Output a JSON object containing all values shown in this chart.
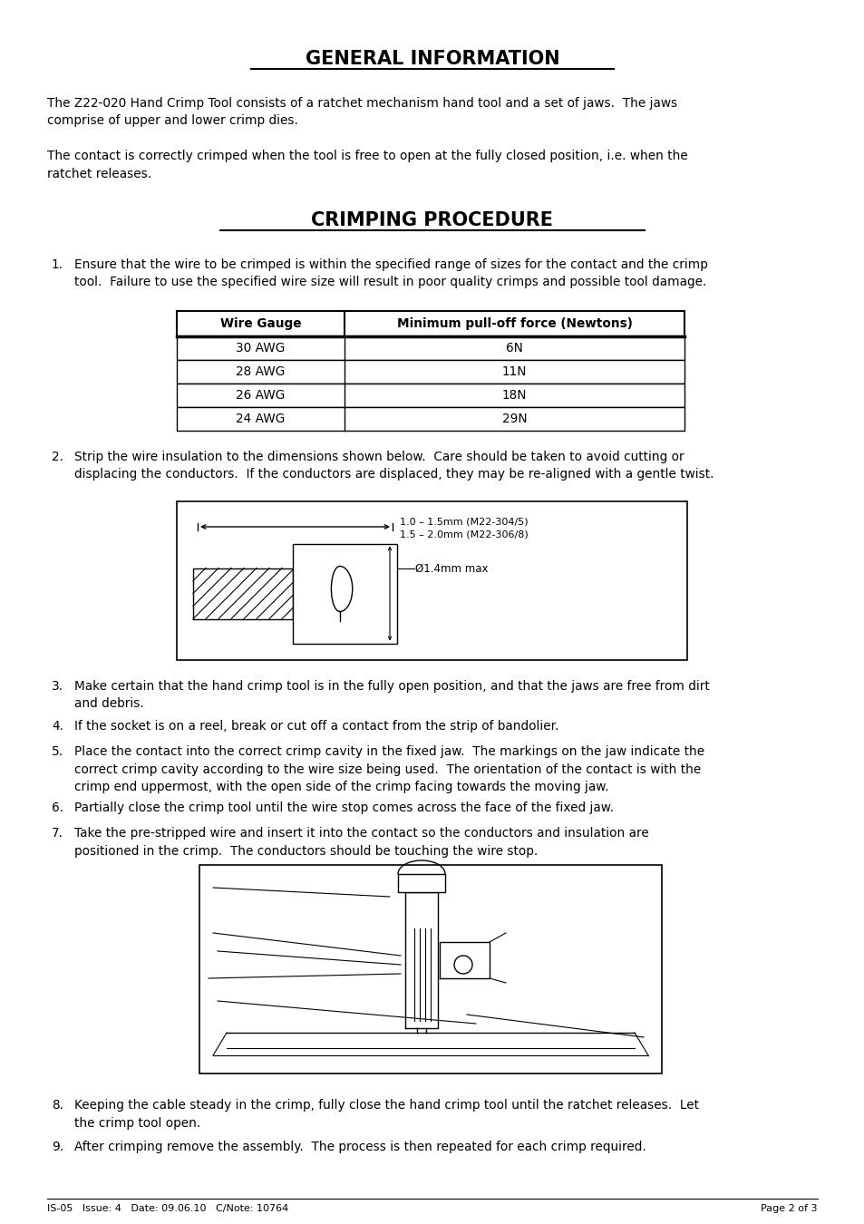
{
  "title": "GENERAL INFORMATION",
  "section2_title": "CRIMPING PROCEDURE",
  "bg_color": "#ffffff",
  "text_color": "#000000",
  "general_info_para1": "The Z22-020 Hand Crimp Tool consists of a ratchet mechanism hand tool and a set of jaws.  The jaws\ncomprise of upper and lower crimp dies.",
  "general_info_para2": "The contact is correctly crimped when the tool is free to open at the fully closed position, i.e. when the\nratchet releases.",
  "step1_text": "Ensure that the wire to be crimped is within the specified range of sizes for the contact and the crimp\ntool.  Failure to use the specified wire size will result in poor quality crimps and possible tool damage.",
  "step2_text": "Strip the wire insulation to the dimensions shown below.  Care should be taken to avoid cutting or\ndisplacing the conductors.  If the conductors are displaced, they may be re-aligned with a gentle twist.",
  "step3_text": "Make certain that the hand crimp tool is in the fully open position, and that the jaws are free from dirt\nand debris.",
  "step4_text": "If the socket is on a reel, break or cut off a contact from the strip of bandolier.",
  "step5_text": "Place the contact into the correct crimp cavity in the fixed jaw.  The markings on the jaw indicate the\ncorrect crimp cavity according to the wire size being used.  The orientation of the contact is with the\ncrimp end uppermost, with the open side of the crimp facing towards the moving jaw.",
  "step6_text": "Partially close the crimp tool until the wire stop comes across the face of the fixed jaw.",
  "step7_text": "Take the pre-stripped wire and insert it into the contact so the conductors and insulation are\npositioned in the crimp.  The conductors should be touching the wire stop.",
  "step8_text": "Keeping the cable steady in the crimp, fully close the hand crimp tool until the ratchet releases.  Let\nthe crimp tool open.",
  "step9_text": "After crimping remove the assembly.  The process is then repeated for each crimp required.",
  "table_headers": [
    "Wire Gauge",
    "Minimum pull-off force (Newtons)"
  ],
  "table_rows": [
    [
      "30 AWG",
      "6N"
    ],
    [
      "28 AWG",
      "11N"
    ],
    [
      "26 AWG",
      "18N"
    ],
    [
      "24 AWG",
      "29N"
    ]
  ],
  "footer_left": "IS-05   Issue: 4   Date: 09.06.10   C/Note: 10764",
  "footer_right": "Page 2 of 3"
}
